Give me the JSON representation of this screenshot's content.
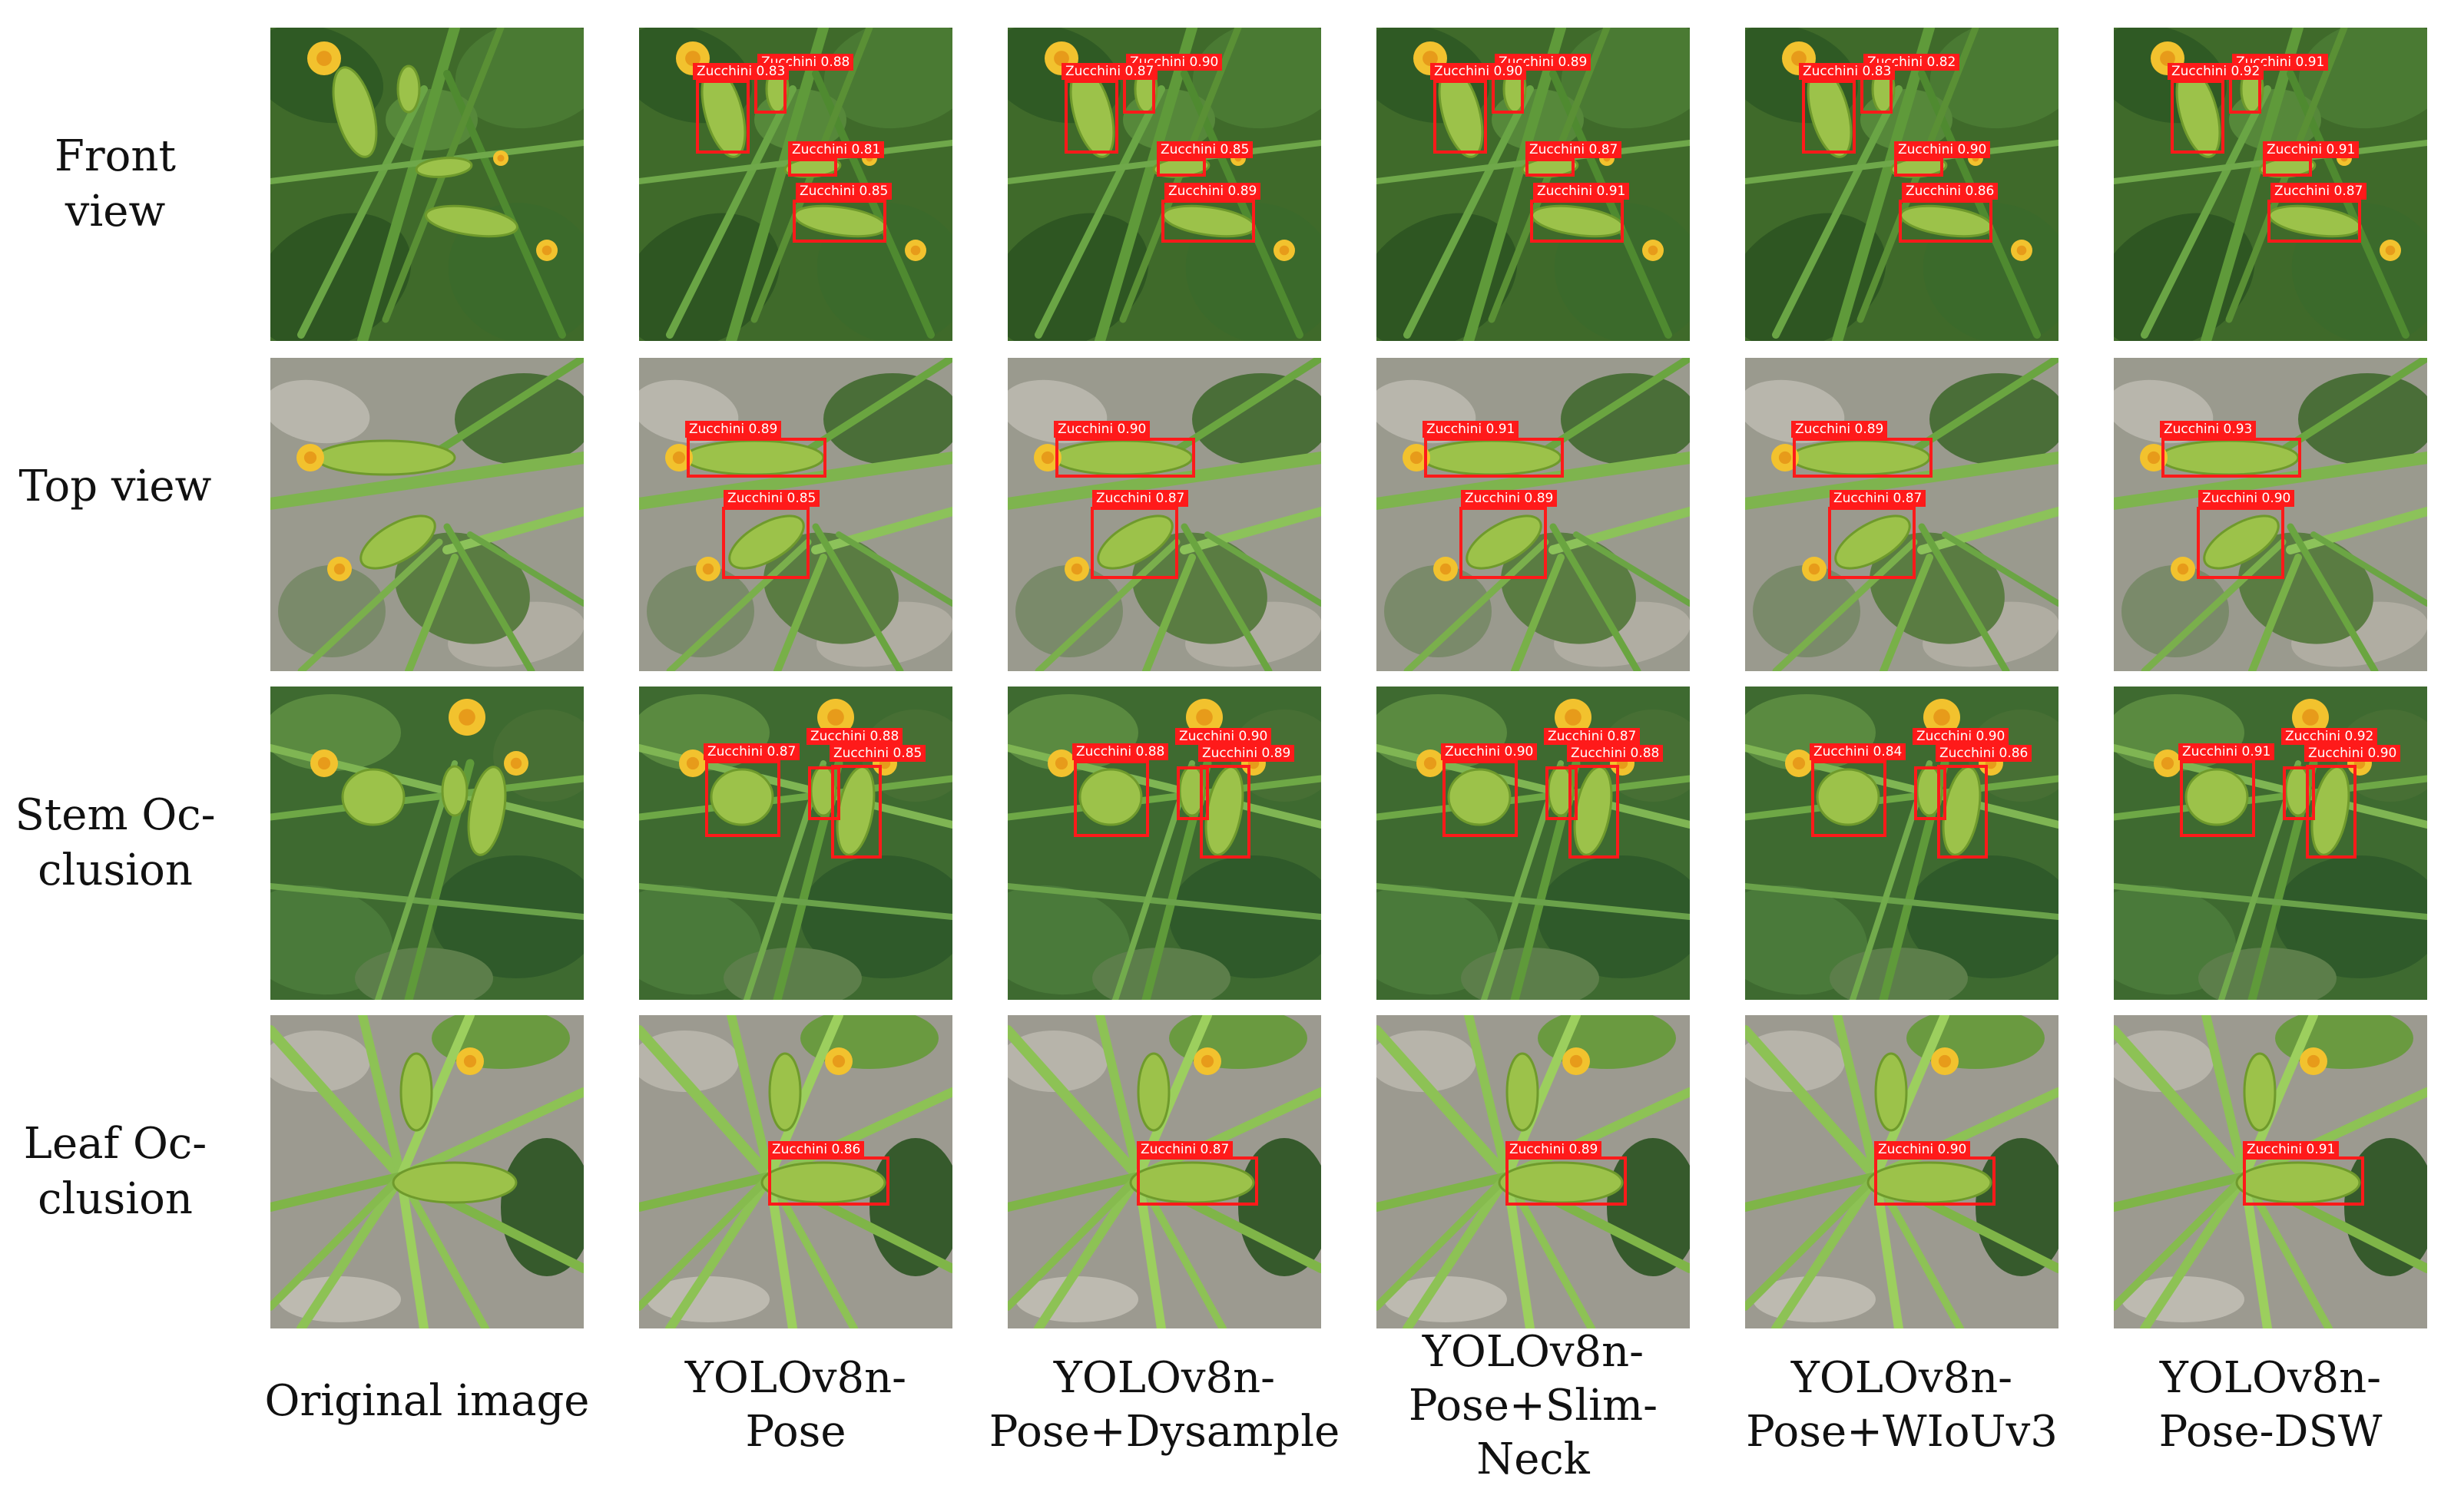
{
  "rows": [
    {
      "id": "front",
      "label": "Front view",
      "scene": "front"
    },
    {
      "id": "top",
      "label": "Top view",
      "scene": "top"
    },
    {
      "id": "stem",
      "label": "Stem Oc-\nclusion",
      "scene": "stem"
    },
    {
      "id": "leaf",
      "label": "Leaf Oc-\nclusion",
      "scene": "leaf"
    }
  ],
  "columns": [
    {
      "id": "original",
      "label": "Original image"
    },
    {
      "id": "pose",
      "label": "YOLOv8n-\nPose"
    },
    {
      "id": "dysample",
      "label": "YOLOv8n-\nPose+Dysample"
    },
    {
      "id": "slimneck",
      "label": "YOLOv8n-\nPose+Slim-\nNeck"
    },
    {
      "id": "wiou",
      "label": "YOLOv8n-\nPose+WIoUv3"
    },
    {
      "id": "dsw",
      "label": "YOLOv8n-\nPose-DSW"
    }
  ],
  "class_name": "Zucchini",
  "box_color": "#ff1a1a",
  "scores": {
    "front": [
      [
        "0.88",
        "0.83",
        "0.81",
        "0.85"
      ],
      [
        "0.90",
        "0.87",
        "0.85",
        "0.89"
      ],
      [
        "0.89",
        "0.90",
        "0.87",
        "0.91"
      ],
      [
        "0.82",
        "0.83",
        "0.90",
        "0.86"
      ],
      [
        "0.91",
        "0.92",
        "0.91",
        "0.87"
      ]
    ],
    "top": [
      [
        "0.89",
        "0.85"
      ],
      [
        "0.90",
        "0.87"
      ],
      [
        "0.91",
        "0.89"
      ],
      [
        "0.89",
        "0.87"
      ],
      [
        "0.93",
        "0.90"
      ]
    ],
    "stem": [
      [
        "0.88",
        "0.87",
        "0.85"
      ],
      [
        "0.90",
        "0.88",
        "0.89"
      ],
      [
        "0.87",
        "0.90",
        "0.88"
      ],
      [
        "0.90",
        "0.84",
        "0.86"
      ],
      [
        "0.92",
        "0.91",
        "0.90"
      ]
    ],
    "leaf": [
      [
        "0.86"
      ],
      [
        "0.87"
      ],
      [
        "0.89"
      ],
      [
        "0.90"
      ],
      [
        "0.91"
      ]
    ]
  }
}
